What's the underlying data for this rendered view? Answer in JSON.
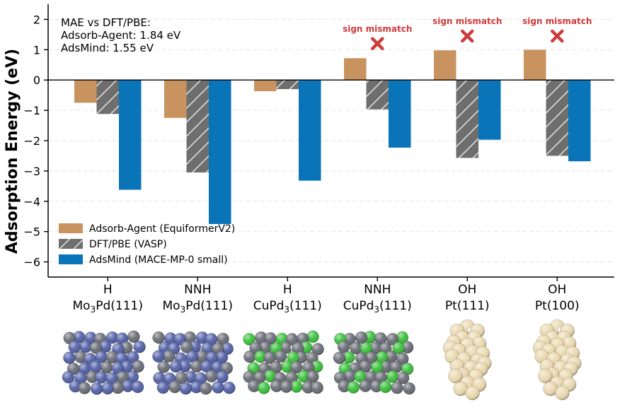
{
  "chart_data": {
    "type": "bar",
    "ylabel": "Adsorption Energy (eV)",
    "ylim": [
      -6.5,
      2.5
    ],
    "yticks": [
      2,
      1,
      0,
      -1,
      -2,
      -3,
      -4,
      -5,
      -6
    ],
    "ytick_labels": [
      "2",
      "1",
      "0",
      "−1",
      "−2",
      "−3",
      "−4",
      "−5",
      "−6"
    ],
    "grid": "horizontal dashed",
    "legend_position": "lower-left",
    "categories": [
      {
        "adsorbate": "H",
        "surface_prefix": "Mo",
        "surface_sub": "3",
        "surface_suffix": "Pd(111)"
      },
      {
        "adsorbate": "NNH",
        "surface_prefix": "Mo",
        "surface_sub": "3",
        "surface_suffix": "Pd(111)"
      },
      {
        "adsorbate": "H",
        "surface_prefix": "CuPd",
        "surface_sub": "3",
        "surface_suffix": "(111)"
      },
      {
        "adsorbate": "NNH",
        "surface_prefix": "CuPd",
        "surface_sub": "3",
        "surface_suffix": "(111)"
      },
      {
        "adsorbate": "OH",
        "surface_prefix": "Pt(111)",
        "surface_sub": "",
        "surface_suffix": ""
      },
      {
        "adsorbate": "OH",
        "surface_prefix": "Pt(100)",
        "surface_sub": "",
        "surface_suffix": ""
      }
    ],
    "series": [
      {
        "name": "Adsorb-Agent (EquiformerV2)",
        "color": "#c8935f",
        "pattern": "solid",
        "values": [
          -0.75,
          -1.25,
          -0.37,
          0.72,
          0.98,
          1.0
        ]
      },
      {
        "name": "DFT/PBE (VASP)",
        "color": "#6e6e6e",
        "pattern": "hatch",
        "values": [
          -1.12,
          -3.05,
          -0.3,
          -0.97,
          -2.57,
          -2.5
        ]
      },
      {
        "name": "AdsMind (MACE-MP-0 small)",
        "color": "#0a74b8",
        "pattern": "solid",
        "values": [
          -3.62,
          -4.75,
          -3.32,
          -2.23,
          -1.97,
          -2.68
        ]
      }
    ],
    "annotation_box": {
      "lines": [
        "MAE vs DFT/PBE:",
        "Adsorb-Agent: 1.84 eV",
        "AdsMind: 1.55 eV"
      ]
    },
    "mismatch": {
      "label": "sign mismatch",
      "marker": "cross-icon",
      "color": "#d03a3a",
      "category_indices": [
        3,
        4,
        5
      ],
      "y_value": 1.2
    },
    "structures": [
      {
        "category_index": 0,
        "type": "slab",
        "colors": [
          "#5563a8",
          "#6c6f78"
        ],
        "adsorbate_colors": [
          "#f5f5f5"
        ]
      },
      {
        "category_index": 1,
        "type": "slab",
        "colors": [
          "#5563a8",
          "#6c6f78"
        ],
        "adsorbate_colors": [
          "#f5f5f5",
          "#3a6fd8"
        ]
      },
      {
        "category_index": 2,
        "type": "slab",
        "colors": [
          "#6c6f78",
          "#3cc13c"
        ],
        "adsorbate_colors": [
          "#f5f5f5"
        ]
      },
      {
        "category_index": 3,
        "type": "slab",
        "colors": [
          "#6c6f78",
          "#3cc13c"
        ],
        "adsorbate_colors": [
          "#f5f5f5",
          "#3a6fd8"
        ]
      },
      {
        "category_index": 4,
        "type": "cluster",
        "colors": [
          "#ead9b0"
        ],
        "adsorbate_colors": [
          "#e23b3b",
          "#f5f5f5"
        ]
      },
      {
        "category_index": 5,
        "type": "cluster",
        "colors": [
          "#ead9b0"
        ],
        "adsorbate_colors": [
          "#e23b3b",
          "#f5f5f5"
        ]
      }
    ]
  }
}
